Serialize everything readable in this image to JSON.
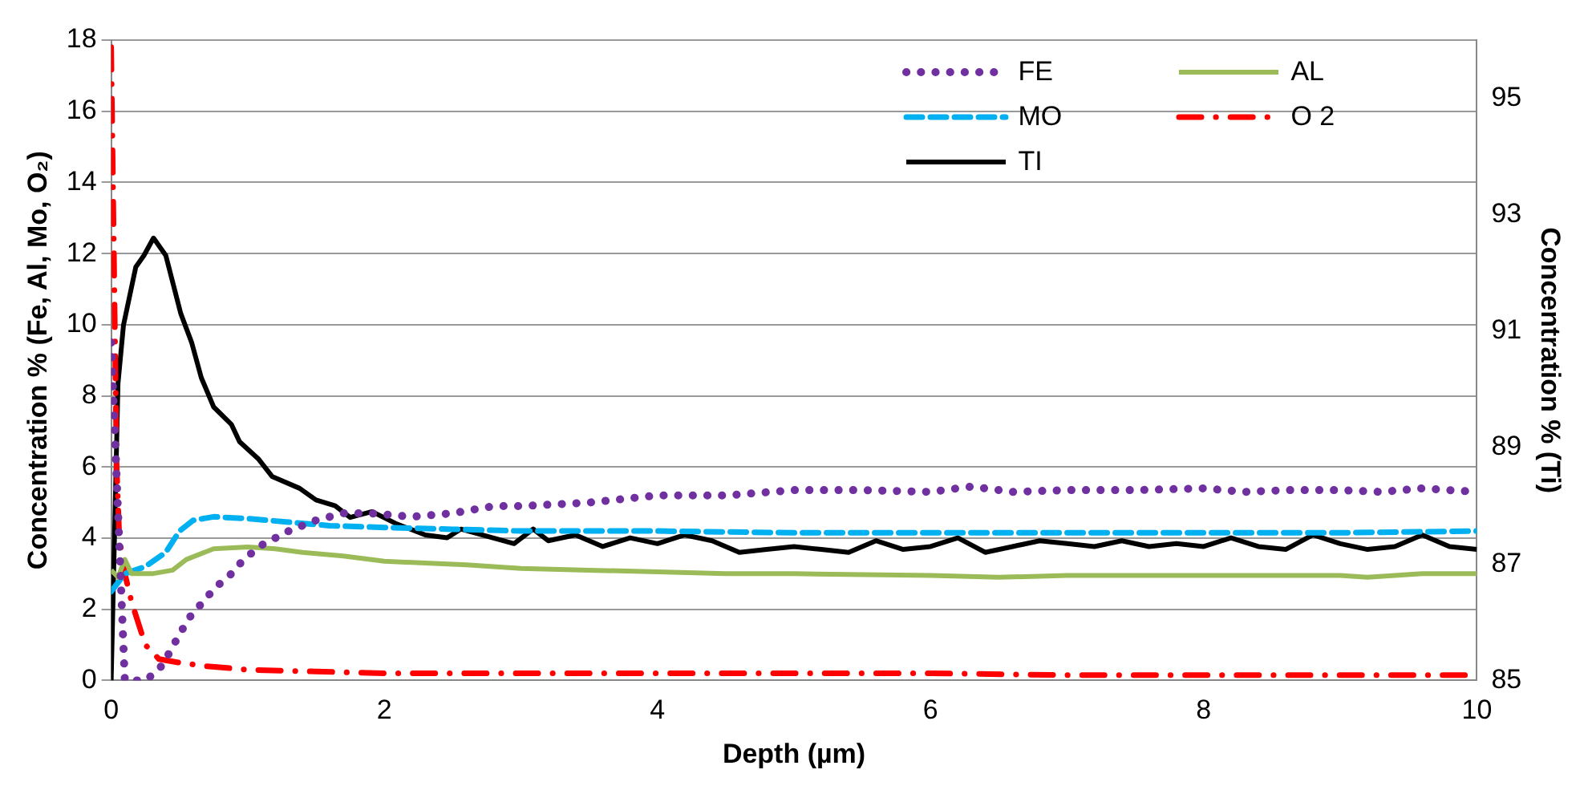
{
  "chart_data": {
    "type": "line",
    "xlabel": "Depth (µm)",
    "ylabel": "Concentration % (Fe, Al, Mo, O₂)",
    "y2label": "Concentration % (Ti)",
    "xlim": [
      0,
      10
    ],
    "xticks": [
      0,
      2,
      4,
      6,
      8,
      10
    ],
    "ylim": [
      0,
      18
    ],
    "yticks": [
      0,
      2,
      4,
      6,
      8,
      10,
      12,
      14,
      16,
      18
    ],
    "y2lim": [
      85,
      96
    ],
    "y2ticks": [
      85,
      87,
      89,
      91,
      93,
      95
    ],
    "grid": "y",
    "legend": "top right",
    "marker": "none",
    "series": [
      {
        "name": "FE",
        "color": "#7030a0",
        "line_style": "dotted",
        "x": [
          0,
          0.1,
          0.25,
          0.35,
          0.43,
          0.5,
          0.58,
          0.67,
          0.76,
          0.88,
          0.97,
          1.1,
          1.3,
          1.5,
          1.7,
          1.9,
          2.2,
          2.5,
          2.8,
          3.0,
          3.5,
          4,
          4.5,
          5,
          5.5,
          6,
          6.3,
          6.6,
          7,
          7.5,
          8,
          8.3,
          8.6,
          9,
          9.3,
          9.6,
          10
        ],
        "values": [
          9.5,
          0,
          0,
          0.3,
          0.8,
          1.3,
          1.8,
          2.2,
          2.6,
          3.0,
          3.4,
          3.8,
          4.2,
          4.5,
          4.7,
          4.7,
          4.6,
          4.7,
          4.9,
          4.9,
          5.0,
          5.2,
          5.2,
          5.35,
          5.35,
          5.3,
          5.45,
          5.3,
          5.35,
          5.35,
          5.4,
          5.3,
          5.35,
          5.35,
          5.3,
          5.4,
          5.3
        ]
      },
      {
        "name": "AL",
        "color": "#9bbb59",
        "line_style": "solid",
        "x": [
          0,
          0.05,
          0.1,
          0.15,
          0.3,
          0.45,
          0.55,
          0.75,
          1.0,
          1.2,
          1.4,
          1.7,
          2.0,
          2.3,
          2.6,
          3.0,
          3.5,
          4,
          4.5,
          5,
          6,
          6.5,
          7,
          8,
          9,
          9.2,
          9.6,
          10
        ],
        "values": [
          3.1,
          2.9,
          3.4,
          3.0,
          3.0,
          3.1,
          3.4,
          3.7,
          3.75,
          3.7,
          3.6,
          3.5,
          3.35,
          3.3,
          3.25,
          3.15,
          3.1,
          3.05,
          3.0,
          3.0,
          2.95,
          2.9,
          2.95,
          2.95,
          2.95,
          2.9,
          3.0,
          3.0
        ]
      },
      {
        "name": "MO",
        "color": "#00b0f0",
        "line_style": "dashed",
        "x": [
          0,
          0.1,
          0.25,
          0.4,
          0.5,
          0.6,
          0.75,
          1.0,
          1.3,
          1.6,
          2,
          2.5,
          3,
          4,
          5,
          6,
          7,
          8,
          9,
          10
        ],
        "values": [
          2.5,
          3.0,
          3.2,
          3.6,
          4.2,
          4.5,
          4.6,
          4.55,
          4.45,
          4.35,
          4.3,
          4.25,
          4.2,
          4.2,
          4.15,
          4.15,
          4.15,
          4.15,
          4.15,
          4.2
        ]
      },
      {
        "name": "O 2",
        "color": "#ff0000",
        "line_style": "dashdot",
        "x": [
          0,
          0.02,
          0.04,
          0.06,
          0.1,
          0.15,
          0.25,
          0.35,
          0.5,
          0.7,
          1.0,
          1.5,
          2,
          3,
          4,
          5,
          6,
          7,
          8,
          9,
          10
        ],
        "values": [
          17.8,
          12,
          6,
          4,
          3,
          2.2,
          1.0,
          0.6,
          0.5,
          0.4,
          0.3,
          0.25,
          0.2,
          0.2,
          0.2,
          0.2,
          0.2,
          0.15,
          0.15,
          0.15,
          0.15
        ]
      },
      {
        "name": "TI",
        "color": "#000000",
        "line_style": "solid",
        "axis": "y2",
        "x": [
          0,
          0.05,
          0.09,
          0.135,
          0.18,
          0.24,
          0.31,
          0.4,
          0.51,
          0.59,
          0.66,
          0.75,
          0.88,
          0.94,
          1.08,
          1.18,
          1.38,
          1.5,
          1.64,
          1.75,
          1.91,
          2.08,
          2.3,
          2.46,
          2.56,
          2.95,
          3.09,
          3.2,
          3.4,
          3.6,
          3.8,
          4.0,
          4.2,
          4.4,
          4.6,
          4.8,
          5.0,
          5.2,
          5.4,
          5.6,
          5.8,
          6.0,
          6.2,
          6.4,
          6.6,
          6.8,
          7.0,
          7.2,
          7.4,
          7.6,
          7.8,
          8.0,
          8.2,
          8.4,
          8.6,
          8.8,
          9.0,
          9.2,
          9.4,
          9.6,
          9.8,
          10
        ],
        "values": [
          85,
          90.1,
          91.1,
          91.6,
          92.1,
          92.3,
          92.6,
          92.3,
          91.3,
          90.8,
          90.2,
          89.7,
          89.4,
          89.1,
          88.8,
          88.5,
          88.3,
          88.1,
          88.0,
          87.8,
          87.9,
          87.7,
          87.5,
          87.45,
          87.6,
          87.35,
          87.6,
          87.4,
          87.5,
          87.3,
          87.45,
          87.35,
          87.5,
          87.4,
          87.2,
          87.25,
          87.3,
          87.25,
          87.2,
          87.4,
          87.25,
          87.3,
          87.45,
          87.2,
          87.3,
          87.4,
          87.35,
          87.3,
          87.4,
          87.3,
          87.35,
          87.3,
          87.45,
          87.3,
          87.25,
          87.5,
          87.35,
          87.25,
          87.3,
          87.5,
          87.3,
          87.25
        ]
      }
    ]
  }
}
